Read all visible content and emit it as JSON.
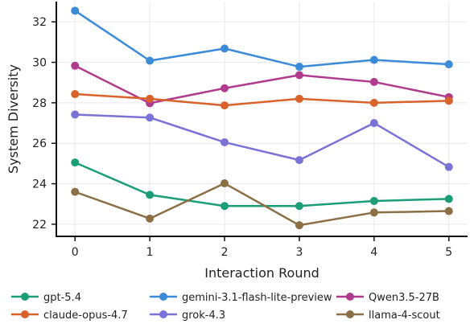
{
  "chart_data": {
    "type": "line",
    "title": "",
    "xlabel": "Interaction Round",
    "ylabel": "System Diversity",
    "x": [
      0,
      1,
      2,
      3,
      4,
      5
    ],
    "xlim": [
      -0.25,
      5.25
    ],
    "ylim": [
      21.4,
      33.0
    ],
    "xticks": [
      0,
      1,
      2,
      3,
      4,
      5
    ],
    "yticks": [
      22,
      24,
      26,
      28,
      30,
      32
    ],
    "grid": true,
    "legend_position": "bottom",
    "series": [
      {
        "name": "gpt-5.4",
        "color": "#1a9e77",
        "values": [
          25.05,
          23.45,
          22.9,
          22.9,
          23.15,
          23.25
        ]
      },
      {
        "name": "gemini-3.1-flash-lite-preview",
        "color": "#3b8bd9",
        "values": [
          32.55,
          30.08,
          30.68,
          29.78,
          30.12,
          29.9
        ]
      },
      {
        "name": "Qwen3.5-27B",
        "color": "#b03a8e",
        "values": [
          29.83,
          27.98,
          28.72,
          29.37,
          29.03,
          28.28
        ]
      },
      {
        "name": "claude-opus-4.7",
        "color": "#d9622b",
        "values": [
          28.43,
          28.2,
          27.87,
          28.2,
          28.0,
          28.1
        ]
      },
      {
        "name": "grok-4.3",
        "color": "#7b72d6",
        "values": [
          27.42,
          27.27,
          26.05,
          25.17,
          27.0,
          24.83
        ]
      },
      {
        "name": "llama-4-scout",
        "color": "#8b6f45",
        "values": [
          23.6,
          22.28,
          24.02,
          21.95,
          22.58,
          22.65
        ]
      }
    ]
  }
}
